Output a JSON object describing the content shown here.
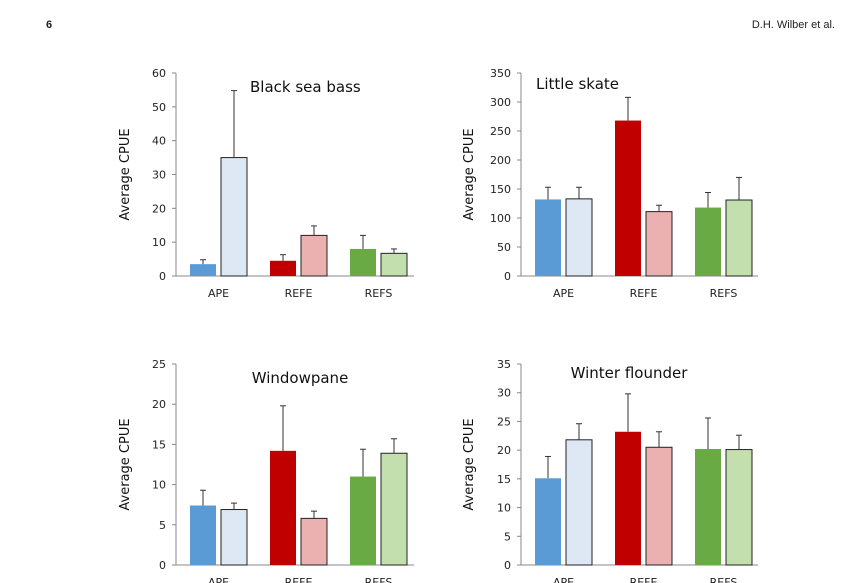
{
  "header": {
    "page_number": "6",
    "running_head": "D.H. Wilber et al."
  },
  "colors": {
    "APE": [
      "#5b9bd5",
      "#dde8f4"
    ],
    "REFE": [
      "#c00000",
      "#ebb0b0"
    ],
    "REFS": [
      "#6aaa44",
      "#c4dfae"
    ]
  },
  "chart_data": [
    {
      "type": "bar",
      "title": "Black sea bass",
      "ylabel": "Average CPUE",
      "ylim": [
        0,
        60
      ],
      "yticks": [
        0,
        10,
        20,
        30,
        40,
        50,
        60
      ],
      "categories": [
        "APE",
        "REFE",
        "REFS"
      ],
      "bars": [
        [
          3.5,
          35
        ],
        [
          4.5,
          12
        ],
        [
          8,
          6.7
        ]
      ],
      "errors": [
        [
          1.3,
          19.8
        ],
        [
          1.8,
          2.8
        ],
        [
          4,
          1.3
        ]
      ]
    },
    {
      "type": "bar",
      "title": "Little skate",
      "ylabel": "Average CPUE",
      "ylim": [
        0,
        350
      ],
      "yticks": [
        0,
        50,
        100,
        150,
        200,
        250,
        300,
        350
      ],
      "categories": [
        "APE",
        "REFE",
        "REFS"
      ],
      "bars": [
        [
          132,
          133
        ],
        [
          268,
          111
        ],
        [
          118,
          131
        ]
      ],
      "errors": [
        [
          21,
          20
        ],
        [
          40,
          11
        ],
        [
          26,
          39
        ]
      ]
    },
    {
      "type": "bar",
      "title": "Windowpane",
      "ylabel": "Average CPUE",
      "ylim": [
        0,
        25
      ],
      "yticks": [
        0,
        5,
        10,
        15,
        20,
        25
      ],
      "categories": [
        "APE",
        "REFE",
        "REFS"
      ],
      "bars": [
        [
          7.4,
          6.9
        ],
        [
          14.2,
          5.8
        ],
        [
          11.0,
          13.9
        ]
      ],
      "errors": [
        [
          1.9,
          0.8
        ],
        [
          5.6,
          0.9
        ],
        [
          3.4,
          1.8
        ]
      ]
    },
    {
      "type": "bar",
      "title": "Winter flounder",
      "ylabel": "Average CPUE",
      "ylim": [
        0,
        35
      ],
      "yticks": [
        0,
        5,
        10,
        15,
        20,
        25,
        30,
        35
      ],
      "categories": [
        "APE",
        "REFE",
        "REFS"
      ],
      "bars": [
        [
          15.1,
          21.8
        ],
        [
          23.2,
          20.5
        ],
        [
          20.2,
          20.1
        ]
      ],
      "errors": [
        [
          3.8,
          2.8
        ],
        [
          6.6,
          2.7
        ],
        [
          5.4,
          2.5
        ]
      ]
    }
  ]
}
